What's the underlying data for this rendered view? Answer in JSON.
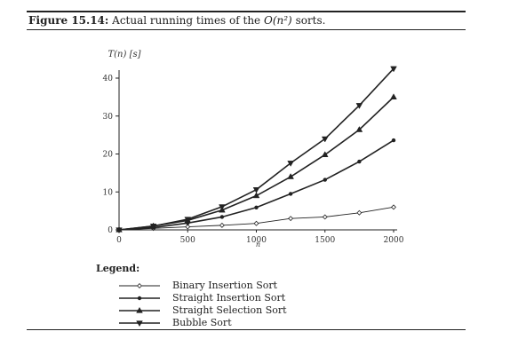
{
  "caption": {
    "figure_label": "Figure 15.14:",
    "text_before": "Actual running times of the",
    "math": "O(n²)",
    "text_after": "sorts."
  },
  "legend": {
    "title": "Legend:"
  },
  "chart_data": {
    "type": "line",
    "title": "Actual running times of the O(n²) sorts.",
    "xlabel": "n",
    "ylabel": "T(n) [s]",
    "xlim": [
      0,
      2000
    ],
    "ylim": [
      0,
      42
    ],
    "x_ticks": [
      0,
      500,
      1000,
      1500,
      2000
    ],
    "y_ticks": [
      0,
      10,
      20,
      30,
      40
    ],
    "grid": false,
    "legend_position": "bottom-left",
    "x": [
      0,
      250,
      500,
      750,
      1000,
      1250,
      1500,
      1750,
      2000
    ],
    "series": [
      {
        "name": "Binary Insertion Sort",
        "marker": "diamond",
        "values": [
          0,
          0.4,
          0.8,
          1.2,
          1.7,
          3.0,
          3.4,
          4.5,
          6.0
        ]
      },
      {
        "name": "Straight Insertion Sort",
        "marker": "circle",
        "values": [
          0,
          0.6,
          1.8,
          3.4,
          5.9,
          9.5,
          13.2,
          18.0,
          23.6
        ]
      },
      {
        "name": "Straight Selection Sort",
        "marker": "triangle-up",
        "values": [
          0,
          1.0,
          2.5,
          5.2,
          9.0,
          14.0,
          19.8,
          26.4,
          35.0
        ]
      },
      {
        "name": "Bubble Sort",
        "marker": "triangle-down",
        "values": [
          0,
          1.0,
          2.8,
          6.1,
          10.6,
          17.6,
          24.0,
          32.8,
          42.5
        ]
      }
    ]
  }
}
